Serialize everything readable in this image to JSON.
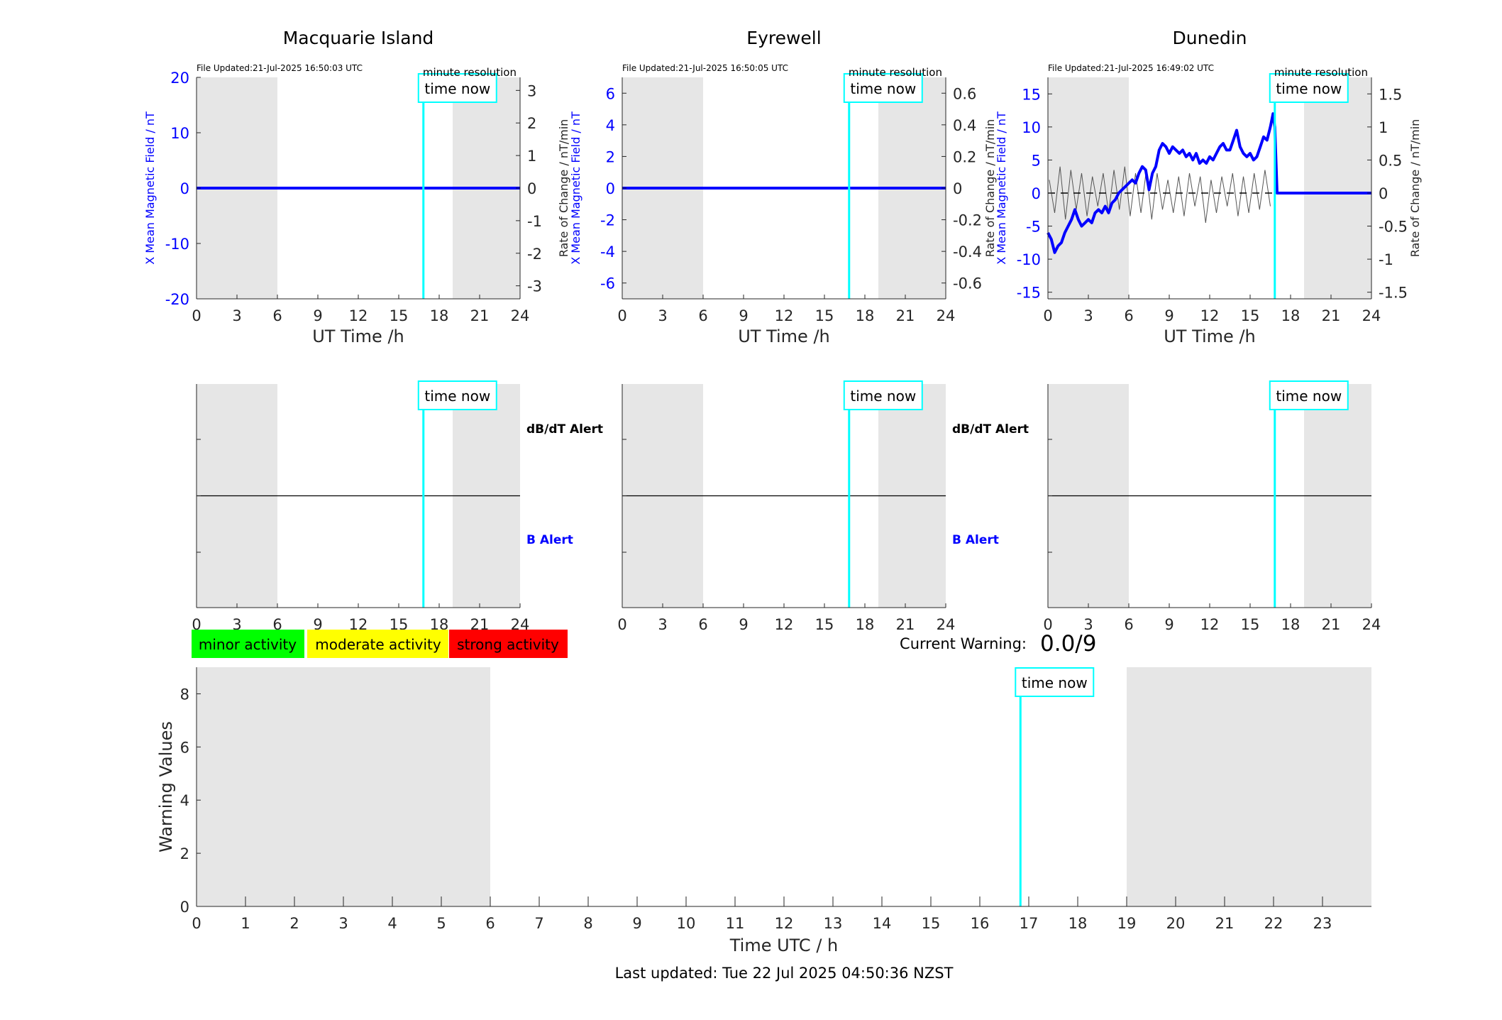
{
  "colors": {
    "background": "#ffffff",
    "night_shade": "#e6e6e6",
    "field_line": "#0000ff",
    "rate_line": "#555555",
    "time_now": "#00ffff",
    "axis": "#262626",
    "b_alert": "#0000ff",
    "minor": "#00ff00",
    "moderate": "#ffff00",
    "strong": "#ff0000"
  },
  "legend": {
    "minor": "minor activity",
    "moderate": "moderate activity",
    "strong": "strong activity"
  },
  "current_warning": {
    "label": "Current Warning:",
    "value": "0.0/9"
  },
  "last_updated": "Last updated: Tue 22 Jul 2025 04:50:36 NZST",
  "chart_data": [
    {
      "type": "line",
      "title": "Macquarie Island",
      "file_updated": "File Updated:21-Jul-2025 16:50:03 UTC",
      "resolution": "minute resolution",
      "time_now_label": "time now",
      "xlabel": "UT Time /h",
      "ylabel_left": "X Mean Magnetic Field / nT",
      "ylabel_right": "Rate of Change / nT/min",
      "xlim": [
        0,
        24
      ],
      "ylim_left": [
        -20,
        20
      ],
      "ylim_right": [
        -3.4,
        3.4
      ],
      "x_ticks": [
        0,
        3,
        6,
        9,
        12,
        15,
        18,
        21,
        24
      ],
      "y_ticks_left": [
        -20,
        -10,
        0,
        10,
        20
      ],
      "y_ticks_right": [
        -3,
        -2,
        -1,
        0,
        1,
        2,
        3
      ],
      "night_shading": [
        [
          0,
          6
        ],
        [
          19,
          24
        ]
      ],
      "time_now": 16.83,
      "series": [
        {
          "x": [
            0,
            24
          ],
          "y": [
            0,
            0
          ]
        }
      ]
    },
    {
      "type": "line",
      "title": "Eyrewell",
      "file_updated": "File Updated:21-Jul-2025 16:50:05 UTC",
      "resolution": "minute resolution",
      "time_now_label": "time now",
      "xlabel": "UT Time /h",
      "ylabel_left": "X Mean Magnetic Field / nT",
      "ylabel_right": "",
      "xlim": [
        0,
        24
      ],
      "ylim_left": [
        -7,
        7
      ],
      "ylim_right": [
        -0.7,
        0.7
      ],
      "x_ticks": [
        0,
        3,
        6,
        9,
        12,
        15,
        18,
        21,
        24
      ],
      "y_ticks_left": [
        -6,
        -4,
        -2,
        0,
        2,
        4,
        6
      ],
      "y_ticks_right": [
        -0.6,
        -0.4,
        -0.2,
        0,
        0.2,
        0.4,
        0.6
      ],
      "night_shading": [
        [
          0,
          6
        ],
        [
          19,
          24
        ]
      ],
      "time_now": 16.83,
      "series": [
        {
          "x": [
            0,
            24
          ],
          "y": [
            0,
            0
          ]
        }
      ]
    },
    {
      "type": "line",
      "title": "Dunedin",
      "file_updated": "File Updated:21-Jul-2025 16:49:02 UTC",
      "resolution": "minute resolution",
      "time_now_label": "time now",
      "xlabel": "UT Time /h",
      "ylabel_left": "X Mean Magnetic Field / nT",
      "ylabel_left2": "Rate of Change / nT/min",
      "ylabel_right": "Rate of Change / nT/min",
      "xlim": [
        0,
        24
      ],
      "ylim_left": [
        -16,
        17.5
      ],
      "ylim_right": [
        -1.6,
        1.75
      ],
      "x_ticks": [
        0,
        3,
        6,
        9,
        12,
        15,
        18,
        21,
        24
      ],
      "y_ticks_left": [
        -15,
        -10,
        -5,
        0,
        5,
        10,
        15
      ],
      "y_ticks_right": [
        -1.5,
        -1,
        -0.5,
        0,
        0.5,
        1,
        1.5
      ],
      "y_ticklabels_right": [
        "-1.5",
        "-1",
        "-0.5",
        "0",
        "0.5",
        "1",
        "1.5"
      ],
      "night_shading": [
        [
          0,
          6
        ],
        [
          19,
          24
        ]
      ],
      "time_now": 16.83,
      "series": [
        {
          "x": [
            0,
            0.25,
            0.5,
            0.75,
            1,
            1.25,
            1.5,
            1.75,
            2,
            2.25,
            2.5,
            2.75,
            3,
            3.25,
            3.5,
            3.75,
            4,
            4.25,
            4.5,
            4.75,
            5,
            5.25,
            5.5,
            5.75,
            6,
            6.25,
            6.5,
            6.75,
            7,
            7.25,
            7.5,
            7.75,
            8,
            8.25,
            8.5,
            8.75,
            9,
            9.25,
            9.5,
            9.75,
            10,
            10.25,
            10.5,
            10.75,
            11,
            11.25,
            11.5,
            11.75,
            12,
            12.25,
            12.5,
            12.75,
            13,
            13.25,
            13.5,
            13.75,
            14,
            14.25,
            14.5,
            14.75,
            15,
            15.25,
            15.5,
            15.75,
            16,
            16.25,
            16.5,
            16.7,
            16.83,
            17,
            24
          ],
          "y": [
            -6,
            -7,
            -9,
            -8,
            -7.5,
            -6,
            -5,
            -4,
            -2.5,
            -4,
            -5,
            -4.5,
            -4,
            -4.5,
            -3,
            -2.5,
            -3,
            -2,
            -3,
            -1.5,
            -1,
            0,
            0.5,
            1,
            1.5,
            2,
            1.5,
            3,
            4,
            3.5,
            0.5,
            3,
            4,
            6.5,
            7.5,
            7,
            6,
            7,
            6.5,
            6,
            6.5,
            5.5,
            6,
            5,
            6,
            4.5,
            5,
            4.5,
            5.5,
            5,
            6,
            7,
            7.5,
            6.5,
            6.5,
            8,
            9.5,
            7,
            6,
            5.5,
            6,
            5,
            5.5,
            7,
            8.5,
            8,
            10,
            12,
            10,
            0,
            0
          ]
        },
        {
          "name": "",
          "x": [
            0.1,
            0.5,
            0.9,
            1.3,
            1.7,
            2.1,
            2.5,
            2.9,
            3.3,
            3.7,
            4.1,
            4.5,
            4.9,
            5.3,
            5.7,
            6.1,
            6.5,
            6.9,
            7.3,
            7.7,
            8.1,
            8.5,
            8.9,
            9.3,
            9.7,
            10.1,
            10.5,
            10.9,
            11.3,
            11.7,
            12.1,
            12.5,
            12.9,
            13.3,
            13.7,
            14.1,
            14.5,
            14.9,
            15.3,
            15.7,
            16.1,
            16.5
          ],
          "y": [
            0.2,
            -0.3,
            0.4,
            -0.4,
            0.35,
            -0.25,
            0.3,
            -0.35,
            0.25,
            -0.2,
            0.3,
            -0.3,
            0.35,
            -0.25,
            0.4,
            -0.35,
            0.3,
            -0.3,
            0.35,
            -0.4,
            0.3,
            -0.25,
            0.2,
            -0.3,
            0.25,
            -0.35,
            0.3,
            -0.2,
            0.25,
            -0.45,
            0.2,
            -0.3,
            0.25,
            -0.2,
            0.3,
            -0.35,
            0.25,
            -0.3,
            0.3,
            -0.25,
            0.35,
            -0.2
          ]
        }
      ]
    },
    {
      "type": "line",
      "panel": "alert",
      "title": "",
      "time_now_label": "time now",
      "dbdt_label": "dB/dT Alert",
      "b_label": "B Alert",
      "xlim": [
        0,
        24
      ],
      "x_ticks": [
        0,
        3,
        6,
        9,
        12,
        15,
        18,
        21,
        24
      ],
      "night_shading": [
        [
          0,
          6
        ],
        [
          19,
          24
        ]
      ],
      "time_now": 16.83
    },
    {
      "type": "line",
      "panel": "alert",
      "title": "",
      "time_now_label": "time now",
      "dbdt_label": "dB/dT Alert",
      "b_label": "B Alert",
      "xlim": [
        0,
        24
      ],
      "x_ticks": [
        0,
        3,
        6,
        9,
        12,
        15,
        18,
        21,
        24
      ],
      "night_shading": [
        [
          0,
          6
        ],
        [
          19,
          24
        ]
      ],
      "time_now": 16.83
    },
    {
      "type": "line",
      "panel": "alert",
      "title": "",
      "time_now_label": "time now",
      "xlim": [
        0,
        24
      ],
      "x_ticks": [
        0,
        3,
        6,
        9,
        12,
        15,
        18,
        21,
        24
      ],
      "night_shading": [
        [
          0,
          6
        ],
        [
          19,
          24
        ]
      ],
      "time_now": 16.83
    },
    {
      "type": "bar",
      "panel": "warning",
      "title": "",
      "xlabel": "Time UTC / h",
      "ylabel": "Warning Values",
      "time_now_label": "time now",
      "xlim": [
        0,
        24
      ],
      "ylim": [
        0,
        9
      ],
      "x_ticks": [
        0,
        1,
        2,
        3,
        4,
        5,
        6,
        7,
        8,
        9,
        10,
        11,
        12,
        13,
        14,
        15,
        16,
        17,
        18,
        19,
        20,
        21,
        22,
        23
      ],
      "y_ticks": [
        0,
        2,
        4,
        6,
        8
      ],
      "night_shading": [
        [
          0,
          6
        ],
        [
          19,
          24
        ]
      ],
      "time_now": 16.83,
      "values": []
    }
  ]
}
